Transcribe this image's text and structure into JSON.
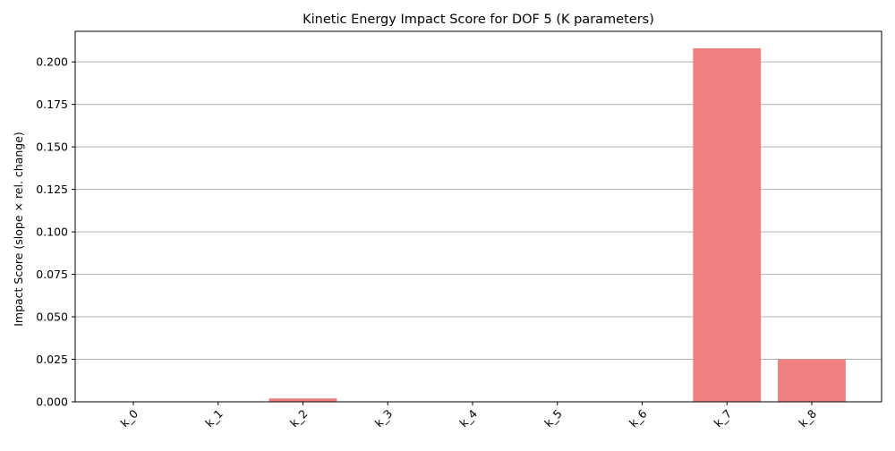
{
  "chart_data": {
    "type": "bar",
    "title": "Kinetic Energy Impact Score for DOF 5 (K parameters)",
    "xlabel": "",
    "ylabel": "Impact Score (slope × rel. change)",
    "categories": [
      "k_0",
      "k_1",
      "k_2",
      "k_3",
      "k_4",
      "k_5",
      "k_6",
      "k_7",
      "k_8"
    ],
    "values": [
      0.0,
      0.0,
      0.002,
      0.0,
      0.0,
      0.0,
      0.0,
      0.208,
      0.025
    ],
    "ylim": [
      0,
      0.218
    ],
    "yticks": [
      0.0,
      0.025,
      0.05,
      0.075,
      0.1,
      0.125,
      0.15,
      0.175,
      0.2
    ],
    "ytick_labels": [
      "0.000",
      "0.025",
      "0.050",
      "0.075",
      "0.100",
      "0.125",
      "0.150",
      "0.175",
      "0.200"
    ],
    "grid": "horizontal",
    "colors": {
      "bar": "#f08080",
      "grid": "#b0b0b0",
      "axis": "#000000"
    }
  }
}
